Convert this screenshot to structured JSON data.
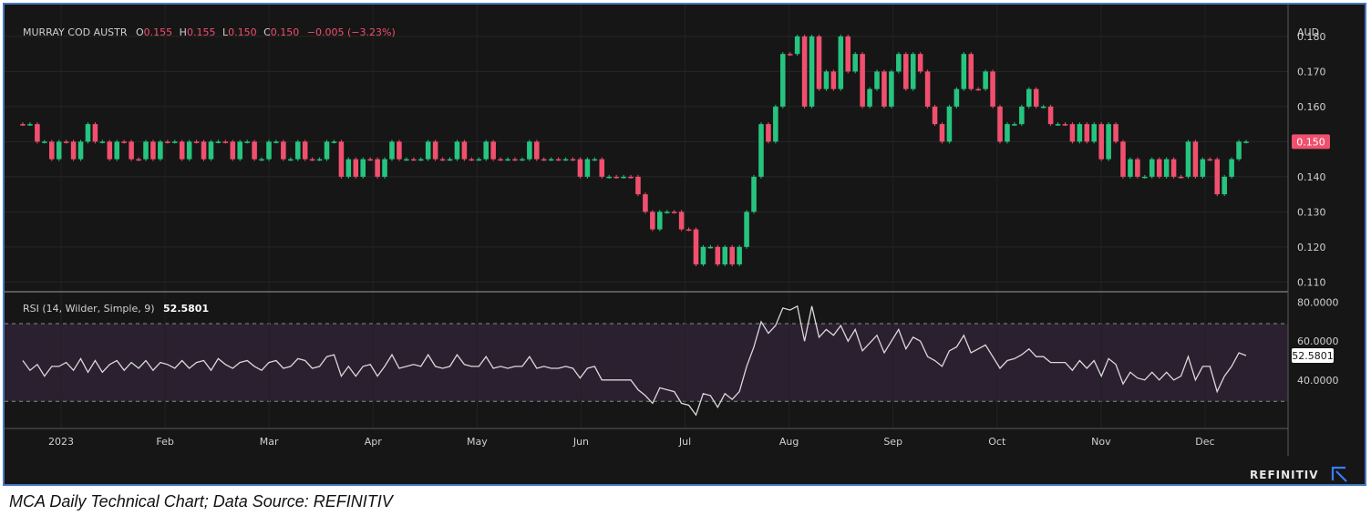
{
  "header": {
    "symbol": "MURRAY COD AUSTR",
    "open_label": "O",
    "open": "0.155",
    "high_label": "H",
    "high": "0.155",
    "low_label": "L",
    "low": "0.150",
    "close_label": "C",
    "close": "0.150",
    "change": "−0.005 (−3.23%)"
  },
  "currency": "AUD",
  "price_badge": "0.150",
  "rsi_header": {
    "label": "RSI (14, Wilder, Simple, 9)",
    "value": "52.5801"
  },
  "rsi_badge": "52.5801",
  "brand": "REFINITIV",
  "caption": "MCA Daily Technical Chart; Data Source: REFINITIV",
  "colors": {
    "up": "#26c47f",
    "down": "#f0506e",
    "rsi_line": "#d9d9d9",
    "rsi_band": "#2a2030",
    "badge": "#f0506e"
  },
  "chart_data": [
    {
      "type": "candlestick",
      "title": "MURRAY COD AUSTR",
      "y_tick_labels": [
        "0.110",
        "0.120",
        "0.130",
        "0.140",
        "0.150",
        "0.160",
        "0.170",
        "0.180"
      ],
      "ylim": [
        0.108,
        0.187
      ],
      "x_tick_labels": [
        "2023",
        "Feb",
        "Mar",
        "Apr",
        "May",
        "Jun",
        "Jul",
        "Aug",
        "Sep",
        "Oct",
        "Nov",
        "Dec"
      ],
      "last_price": 0.15,
      "closes": [
        0.155,
        0.155,
        0.15,
        0.15,
        0.145,
        0.15,
        0.15,
        0.145,
        0.15,
        0.155,
        0.15,
        0.15,
        0.145,
        0.15,
        0.15,
        0.145,
        0.145,
        0.15,
        0.145,
        0.15,
        0.15,
        0.15,
        0.145,
        0.15,
        0.15,
        0.145,
        0.15,
        0.15,
        0.15,
        0.145,
        0.15,
        0.15,
        0.145,
        0.145,
        0.15,
        0.15,
        0.145,
        0.145,
        0.15,
        0.145,
        0.145,
        0.145,
        0.15,
        0.15,
        0.14,
        0.145,
        0.14,
        0.145,
        0.145,
        0.14,
        0.145,
        0.15,
        0.145,
        0.145,
        0.145,
        0.145,
        0.15,
        0.145,
        0.145,
        0.145,
        0.15,
        0.145,
        0.145,
        0.145,
        0.15,
        0.145,
        0.145,
        0.145,
        0.145,
        0.145,
        0.15,
        0.145,
        0.145,
        0.145,
        0.145,
        0.145,
        0.145,
        0.14,
        0.145,
        0.145,
        0.14,
        0.14,
        0.14,
        0.14,
        0.14,
        0.135,
        0.13,
        0.125,
        0.13,
        0.13,
        0.13,
        0.125,
        0.125,
        0.115,
        0.12,
        0.12,
        0.115,
        0.12,
        0.115,
        0.12,
        0.13,
        0.14,
        0.155,
        0.15,
        0.16,
        0.175,
        0.175,
        0.18,
        0.16,
        0.18,
        0.165,
        0.17,
        0.165,
        0.18,
        0.17,
        0.175,
        0.16,
        0.165,
        0.17,
        0.16,
        0.17,
        0.175,
        0.165,
        0.175,
        0.17,
        0.16,
        0.155,
        0.15,
        0.16,
        0.165,
        0.175,
        0.165,
        0.165,
        0.17,
        0.16,
        0.15,
        0.155,
        0.155,
        0.16,
        0.165,
        0.16,
        0.16,
        0.155,
        0.155,
        0.155,
        0.15,
        0.155,
        0.15,
        0.155,
        0.145,
        0.155,
        0.15,
        0.14,
        0.145,
        0.14,
        0.14,
        0.145,
        0.14,
        0.145,
        0.14,
        0.14,
        0.15,
        0.14,
        0.145,
        0.145,
        0.135,
        0.14,
        0.145,
        0.15,
        0.15
      ]
    },
    {
      "type": "line",
      "title": "RSI (14, Wilder, Simple, 9)",
      "y_tick_labels": [
        "40.0000",
        "60.0000",
        "80.0000"
      ],
      "ylim": [
        16,
        84
      ],
      "band": [
        29,
        69
      ],
      "last_value": 52.5801,
      "values": [
        50,
        45,
        48,
        42,
        47,
        47,
        49,
        45,
        51,
        44,
        50,
        44,
        48,
        50,
        45,
        49,
        46,
        50,
        45,
        49,
        48,
        46,
        50,
        46,
        49,
        50,
        45,
        51,
        48,
        46,
        49,
        50,
        47,
        45,
        49,
        50,
        46,
        47,
        51,
        50,
        46,
        47,
        52,
        53,
        42,
        47,
        42,
        47,
        48,
        42,
        47,
        53,
        46,
        47,
        48,
        47,
        53,
        47,
        46,
        47,
        53,
        48,
        47,
        47,
        52,
        46,
        47,
        46,
        47,
        47,
        52,
        46,
        47,
        46,
        46,
        47,
        46,
        41,
        46,
        47,
        40,
        40,
        40,
        40,
        40,
        35,
        32,
        28,
        36,
        35,
        34,
        28,
        27,
        22,
        33,
        32,
        26,
        33,
        30,
        34,
        47,
        57,
        70,
        64,
        68,
        77,
        76,
        78,
        60,
        78,
        62,
        66,
        63,
        68,
        60,
        66,
        55,
        59,
        63,
        54,
        60,
        66,
        56,
        62,
        60,
        52,
        50,
        47,
        55,
        57,
        63,
        54,
        56,
        58,
        52,
        46,
        50,
        51,
        53,
        56,
        52,
        52,
        49,
        49,
        49,
        45,
        50,
        46,
        50,
        42,
        51,
        48,
        38,
        44,
        41,
        40,
        44,
        40,
        44,
        40,
        42,
        52,
        40,
        47,
        47,
        34,
        42,
        47,
        54,
        52.58
      ]
    }
  ]
}
